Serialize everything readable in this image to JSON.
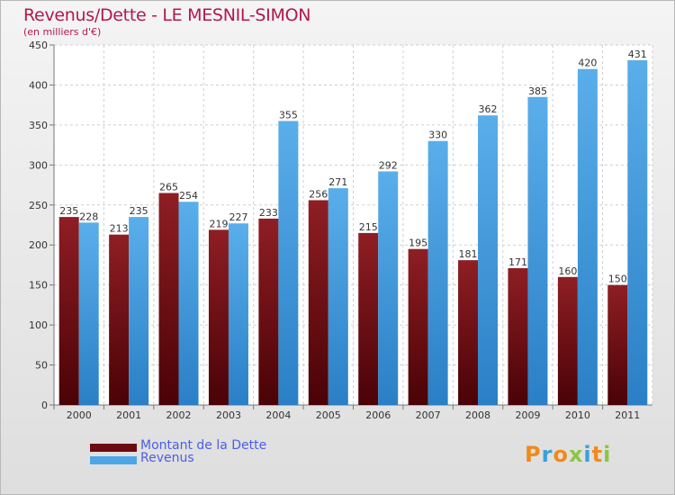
{
  "title": "Revenus/Dette - LE MESNIL-SIMON",
  "subtitle": "(en milliers d'€)",
  "chart_data": {
    "type": "bar",
    "categories": [
      "2000",
      "2001",
      "2002",
      "2003",
      "2004",
      "2005",
      "2006",
      "2007",
      "2008",
      "2009",
      "2010",
      "2011"
    ],
    "series": [
      {
        "name": "Montant de la Dette",
        "color": "#7a1218",
        "values": [
          235,
          213,
          265,
          219,
          233,
          256,
          215,
          195,
          181,
          171,
          160,
          150
        ]
      },
      {
        "name": "Revenus",
        "color": "#4da6e8",
        "values": [
          228,
          235,
          254,
          227,
          355,
          271,
          292,
          330,
          362,
          385,
          420,
          431
        ]
      }
    ],
    "yticks": [
      0,
      50,
      100,
      150,
      200,
      250,
      300,
      350,
      400,
      450
    ],
    "ylim": [
      0,
      450
    ],
    "grid": true,
    "legend": "bottom-left"
  },
  "legend": {
    "dette": {
      "label": "Montant de la Dette",
      "color": "#6b0a10"
    },
    "revenus": {
      "label": "Revenus",
      "color": "#4da6e8"
    }
  },
  "logo": {
    "text": "Proxiti"
  }
}
